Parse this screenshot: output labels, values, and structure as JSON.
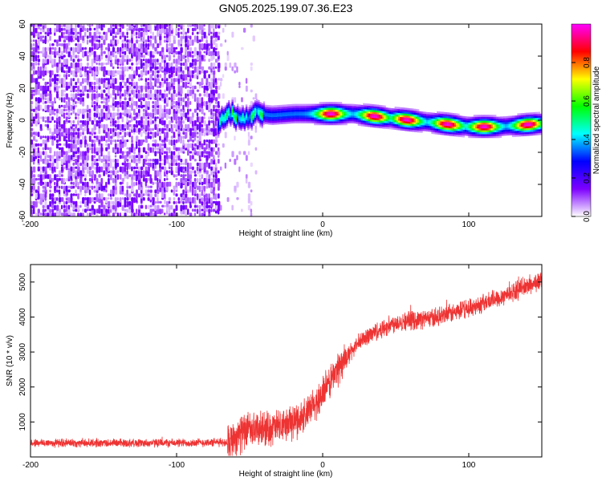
{
  "title": "GN05.2025.199.07.36.E23",
  "chart_data": [
    {
      "type": "heatmap",
      "xlabel": "Height of straight line (km)",
      "ylabel": "Frequency (Hz)",
      "xlim": [
        -200,
        150
      ],
      "ylim": [
        -60,
        60
      ],
      "x_ticks": [
        "-200",
        "-100",
        "0",
        "100"
      ],
      "y_ticks": [
        "-60",
        "-40",
        "-20",
        "0",
        "20",
        "40",
        "60"
      ],
      "colorbar": {
        "label": "Normalized spectral amplitude",
        "range": [
          0.0,
          1.0
        ],
        "ticks": [
          "0.0",
          "0.2",
          "0.4",
          "0.6",
          "0.8"
        ],
        "colormap": [
          "#ffffff",
          "#7d00ff",
          "#0000ff",
          "#00ffff",
          "#00ff00",
          "#ffff00",
          "#ff0000",
          "#ff00ff"
        ]
      },
      "noise_region_x": [
        -200,
        -72
      ],
      "sparse_region_x": [
        -72,
        -45
      ],
      "signal_ridge": {
        "x": [
          -72,
          -65,
          -55,
          -45,
          -35,
          -20,
          0,
          20,
          40,
          60,
          80,
          100,
          120,
          150
        ],
        "y": [
          -2,
          4,
          2,
          4,
          3,
          4,
          4,
          4,
          2,
          0,
          -2,
          -4,
          -4,
          -2
        ],
        "peaks": [
          {
            "x": 5,
            "y": 4
          },
          {
            "x": 35,
            "y": 2
          },
          {
            "x": 57,
            "y": 0
          },
          {
            "x": 85,
            "y": -2
          },
          {
            "x": 110,
            "y": -4
          },
          {
            "x": 140,
            "y": -2
          }
        ]
      }
    },
    {
      "type": "line",
      "xlabel": "Height of straight line (km)",
      "ylabel": "SNR (10 * v/v)",
      "xlim": [
        -200,
        150
      ],
      "ylim": [
        0,
        5500
      ],
      "x_ticks": [
        "-200",
        "-100",
        "0",
        "100"
      ],
      "y_ticks": [
        "1000",
        "2000",
        "3000",
        "4000",
        "5000"
      ],
      "color": "#ee3333",
      "trend": {
        "x": [
          -200,
          -150,
          -100,
          -65,
          -55,
          -40,
          -30,
          -20,
          -10,
          0,
          10,
          20,
          30,
          50,
          80,
          100,
          120,
          150
        ],
        "y": [
          400,
          400,
          400,
          420,
          700,
          800,
          850,
          1000,
          1250,
          1800,
          2500,
          3050,
          3450,
          3850,
          4000,
          4250,
          4550,
          5050
        ]
      }
    }
  ]
}
